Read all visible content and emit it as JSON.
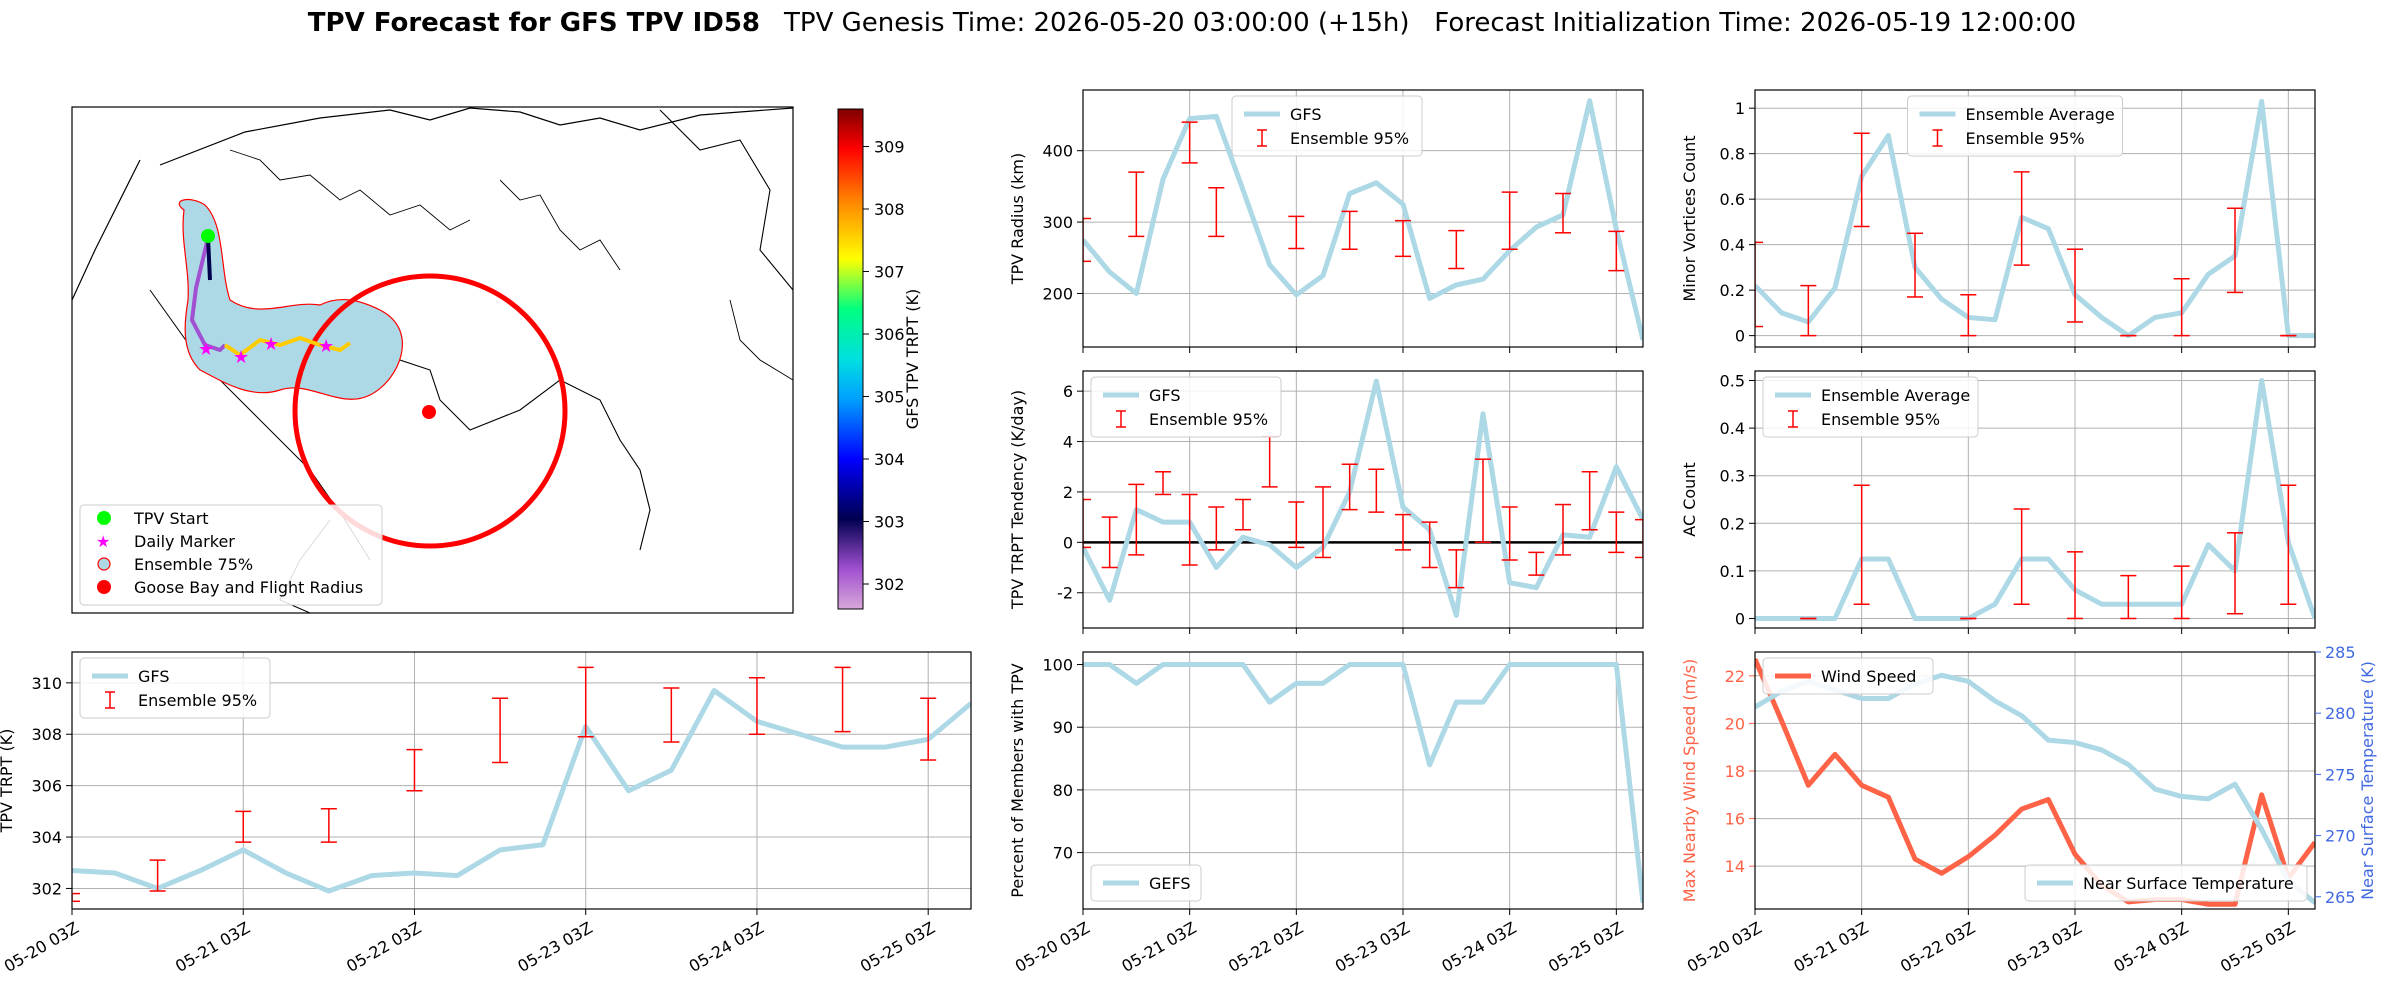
{
  "title": {
    "bold": "TPV Forecast for GFS TPV ID58",
    "rest": "TPV Genesis Time: 2026-05-20 03:00:00 (+15h)   Forecast Initialization Time: 2026-05-19 12:00:00"
  },
  "colors": {
    "gfs_line": "#add8e6",
    "errorbar": "#ff0000",
    "wind": "#ff6347",
    "temp_axis": "#4169e1",
    "axes": "#000000",
    "grid": "#b0b0b0"
  },
  "x_ticks": [
    "05-20 03Z",
    "05-21 03Z",
    "05-22 03Z",
    "05-23 03Z",
    "05-24 03Z",
    "05-25 03Z"
  ],
  "map": {
    "legend": [
      "TPV Start",
      "Daily Marker",
      "Ensemble 75%",
      "Goose Bay and Flight Radius"
    ],
    "colorbar_label": "GFS TPV TRPT (K)",
    "colorbar_ticks": [
      302,
      303,
      304,
      305,
      306,
      307,
      308,
      309
    ],
    "colorbar_range": [
      301.6,
      309.6
    ]
  },
  "chart_data": [
    {
      "id": "trpt",
      "type": "line",
      "ylabel": "TPV TRPT (K)",
      "ylim": [
        301.2,
        311.2
      ],
      "yticks": [
        302,
        304,
        306,
        308,
        310
      ],
      "legend": [
        "GFS",
        "Ensemble 95%"
      ],
      "legend_position": "upper-left",
      "x_hours": [
        0,
        6,
        12,
        18,
        24,
        30,
        36,
        42,
        48,
        54,
        60,
        66,
        72,
        78,
        84,
        90,
        96,
        102,
        108,
        114,
        120,
        126
      ],
      "series": [
        {
          "name": "GFS",
          "values": [
            302.7,
            302.6,
            302.0,
            302.7,
            303.5,
            302.6,
            301.9,
            302.5,
            302.6,
            302.5,
            303.5,
            303.7,
            308.3,
            305.8,
            306.6,
            309.7,
            308.5,
            308.0,
            307.5,
            307.5,
            307.8,
            309.2
          ]
        }
      ],
      "errorbars": [
        {
          "x": 0,
          "lo": 301.5,
          "hi": 301.8
        },
        {
          "x": 12,
          "lo": 301.9,
          "hi": 303.1
        },
        {
          "x": 24,
          "lo": 303.8,
          "hi": 305.0
        },
        {
          "x": 36,
          "lo": 303.8,
          "hi": 305.1
        },
        {
          "x": 48,
          "lo": 305.8,
          "hi": 307.4
        },
        {
          "x": 60,
          "lo": 306.9,
          "hi": 309.4
        },
        {
          "x": 72,
          "lo": 307.9,
          "hi": 310.6
        },
        {
          "x": 84,
          "lo": 307.7,
          "hi": 309.8
        },
        {
          "x": 96,
          "lo": 308.0,
          "hi": 310.2
        },
        {
          "x": 108,
          "lo": 308.1,
          "hi": 310.6
        },
        {
          "x": 120,
          "lo": 307.0,
          "hi": 309.4
        }
      ]
    },
    {
      "id": "radius",
      "type": "line",
      "ylabel": "TPV Radius (km)",
      "ylim": [
        125,
        485
      ],
      "yticks": [
        200,
        300,
        400
      ],
      "legend": [
        "GFS",
        "Ensemble 95%"
      ],
      "legend_position": "upper-center",
      "x_hours": [
        0,
        6,
        12,
        18,
        24,
        30,
        36,
        42,
        48,
        54,
        60,
        66,
        72,
        78,
        84,
        90,
        96,
        102,
        108,
        114,
        120,
        126
      ],
      "series": [
        {
          "name": "GFS",
          "values": [
            275,
            230,
            200,
            360,
            445,
            448,
            345,
            240,
            198,
            225,
            340,
            355,
            325,
            193,
            212,
            220,
            260,
            293,
            310,
            470,
            290,
            135
          ]
        }
      ],
      "errorbars": [
        {
          "x": 0,
          "lo": 245,
          "hi": 305
        },
        {
          "x": 12,
          "lo": 280,
          "hi": 370
        },
        {
          "x": 24,
          "lo": 383,
          "hi": 440
        },
        {
          "x": 30,
          "lo": 280,
          "hi": 348
        },
        {
          "x": 48,
          "lo": 263,
          "hi": 308
        },
        {
          "x": 60,
          "lo": 262,
          "hi": 315
        },
        {
          "x": 72,
          "lo": 252,
          "hi": 302
        },
        {
          "x": 84,
          "lo": 235,
          "hi": 288
        },
        {
          "x": 96,
          "lo": 262,
          "hi": 342
        },
        {
          "x": 108,
          "lo": 285,
          "hi": 340
        },
        {
          "x": 120,
          "lo": 232,
          "hi": 287
        }
      ]
    },
    {
      "id": "minor",
      "type": "line",
      "ylabel": "Minor Vortices Count",
      "ylim": [
        -0.05,
        1.08
      ],
      "yticks": [
        0.0,
        0.2,
        0.4,
        0.6,
        0.8,
        1.0
      ],
      "legend": [
        "Ensemble Average",
        "Ensemble 95%"
      ],
      "legend_position": "upper-center",
      "x_hours": [
        0,
        6,
        12,
        18,
        24,
        30,
        36,
        42,
        48,
        54,
        60,
        66,
        72,
        78,
        84,
        90,
        96,
        102,
        108,
        114,
        120,
        126
      ],
      "series": [
        {
          "name": "Ensemble Average",
          "values": [
            0.22,
            0.1,
            0.06,
            0.21,
            0.7,
            0.88,
            0.3,
            0.16,
            0.08,
            0.07,
            0.52,
            0.47,
            0.18,
            0.08,
            0.0,
            0.08,
            0.1,
            0.27,
            0.35,
            1.03,
            0.0,
            0.0
          ]
        }
      ],
      "errorbars": [
        {
          "x": 0,
          "lo": 0.04,
          "hi": 0.41
        },
        {
          "x": 12,
          "lo": 0.0,
          "hi": 0.22
        },
        {
          "x": 24,
          "lo": 0.48,
          "hi": 0.89
        },
        {
          "x": 36,
          "lo": 0.17,
          "hi": 0.45
        },
        {
          "x": 48,
          "lo": 0.0,
          "hi": 0.18
        },
        {
          "x": 60,
          "lo": 0.31,
          "hi": 0.72
        },
        {
          "x": 72,
          "lo": 0.06,
          "hi": 0.38
        },
        {
          "x": 84,
          "lo": 0.0,
          "hi": 0.0
        },
        {
          "x": 96,
          "lo": 0.0,
          "hi": 0.25
        },
        {
          "x": 108,
          "lo": 0.19,
          "hi": 0.56
        },
        {
          "x": 120,
          "lo": 0.0,
          "hi": 0.0
        }
      ]
    },
    {
      "id": "tendency",
      "type": "line",
      "ylabel": "TPV TRPT Tendency (K/day)",
      "ylim": [
        -3.4,
        6.8
      ],
      "yticks": [
        -2,
        0,
        2,
        4,
        6
      ],
      "zero_line": true,
      "legend": [
        "GFS",
        "Ensemble 95%"
      ],
      "legend_position": "upper-left",
      "x_hours": [
        0,
        6,
        12,
        18,
        24,
        30,
        36,
        42,
        48,
        54,
        60,
        66,
        72,
        78,
        84,
        90,
        96,
        102,
        108,
        114,
        120,
        126
      ],
      "series": [
        {
          "name": "GFS",
          "values": [
            -0.2,
            -2.3,
            1.3,
            0.8,
            0.8,
            -1.0,
            0.2,
            -0.1,
            -1.0,
            -0.2,
            2.0,
            6.4,
            1.4,
            0.5,
            -2.9,
            5.1,
            -1.6,
            -1.8,
            0.3,
            0.2,
            3.0,
            0.9
          ]
        }
      ],
      "errorbars": [
        {
          "x": 0,
          "lo": -0.2,
          "hi": 1.7
        },
        {
          "x": 6,
          "lo": -1.0,
          "hi": 1.0
        },
        {
          "x": 12,
          "lo": -0.5,
          "hi": 2.3
        },
        {
          "x": 18,
          "lo": 1.9,
          "hi": 2.8
        },
        {
          "x": 24,
          "lo": -0.9,
          "hi": 1.9
        },
        {
          "x": 30,
          "lo": -0.3,
          "hi": 1.4
        },
        {
          "x": 36,
          "lo": 0.5,
          "hi": 1.7
        },
        {
          "x": 42,
          "lo": 2.2,
          "hi": 4.2
        },
        {
          "x": 48,
          "lo": -0.2,
          "hi": 1.6
        },
        {
          "x": 54,
          "lo": -0.6,
          "hi": 2.2
        },
        {
          "x": 60,
          "lo": 1.3,
          "hi": 3.1
        },
        {
          "x": 66,
          "lo": 1.2,
          "hi": 2.9
        },
        {
          "x": 72,
          "lo": -0.3,
          "hi": 1.1
        },
        {
          "x": 78,
          "lo": -1.0,
          "hi": 0.8
        },
        {
          "x": 84,
          "lo": -1.8,
          "hi": -0.3
        },
        {
          "x": 90,
          "lo": 0.0,
          "hi": 3.3
        },
        {
          "x": 96,
          "lo": -0.7,
          "hi": 1.4
        },
        {
          "x": 102,
          "lo": -1.3,
          "hi": -0.4
        },
        {
          "x": 108,
          "lo": -0.5,
          "hi": 1.5
        },
        {
          "x": 114,
          "lo": 0.5,
          "hi": 2.8
        },
        {
          "x": 120,
          "lo": -0.4,
          "hi": 1.2
        },
        {
          "x": 126,
          "lo": -0.6,
          "hi": 0.9
        }
      ]
    },
    {
      "id": "ac",
      "type": "line",
      "ylabel": "AC Count",
      "ylim": [
        -0.02,
        0.52
      ],
      "yticks": [
        0.0,
        0.1,
        0.2,
        0.3,
        0.4,
        0.5
      ],
      "legend": [
        "Ensemble Average",
        "Ensemble 95%"
      ],
      "legend_position": "upper-left",
      "x_hours": [
        0,
        6,
        12,
        18,
        24,
        30,
        36,
        42,
        48,
        54,
        60,
        66,
        72,
        78,
        84,
        90,
        96,
        102,
        108,
        114,
        120,
        126
      ],
      "series": [
        {
          "name": "Ensemble Average",
          "values": [
            0.0,
            0.0,
            0.0,
            0.0,
            0.125,
            0.125,
            0.0,
            0.0,
            0.0,
            0.03,
            0.125,
            0.125,
            0.06,
            0.03,
            0.03,
            0.03,
            0.03,
            0.155,
            0.1,
            0.5,
            0.16,
            0.0
          ]
        }
      ],
      "errorbars": [
        {
          "x": 12,
          "lo": 0.0,
          "hi": 0.0
        },
        {
          "x": 24,
          "lo": 0.03,
          "hi": 0.28
        },
        {
          "x": 48,
          "lo": 0.0,
          "hi": 0.0
        },
        {
          "x": 60,
          "lo": 0.03,
          "hi": 0.23
        },
        {
          "x": 72,
          "lo": 0.0,
          "hi": 0.14
        },
        {
          "x": 84,
          "lo": 0.0,
          "hi": 0.09
        },
        {
          "x": 96,
          "lo": 0.0,
          "hi": 0.11
        },
        {
          "x": 108,
          "lo": 0.01,
          "hi": 0.18
        },
        {
          "x": 120,
          "lo": 0.03,
          "hi": 0.28
        }
      ]
    },
    {
      "id": "percent",
      "type": "line",
      "ylabel": "Percent of Members with TPV",
      "ylim": [
        61,
        102
      ],
      "yticks": [
        70,
        80,
        90,
        100
      ],
      "legend": [
        "GEFS"
      ],
      "legend_position": "lower-left",
      "x_hours": [
        0,
        6,
        12,
        18,
        24,
        30,
        36,
        42,
        48,
        54,
        60,
        66,
        72,
        78,
        84,
        90,
        96,
        102,
        108,
        114,
        120,
        126
      ],
      "series": [
        {
          "name": "GEFS",
          "values": [
            100,
            100,
            97,
            100,
            100,
            100,
            100,
            94,
            97,
            97,
            100,
            100,
            100,
            84,
            94,
            94,
            100,
            100,
            100,
            100,
            100,
            62
          ]
        }
      ]
    },
    {
      "id": "wind_temp",
      "type": "line",
      "ylabel": "Max Nearby Wind Speed (m/s)",
      "ylabel_right": "Near Surface Temperature (K)",
      "ylim": [
        12.2,
        23.0
      ],
      "yticks": [
        14,
        16,
        18,
        20,
        22
      ],
      "ylim_right": [
        264.0,
        285.0
      ],
      "yticks_right": [
        265,
        270,
        275,
        280,
        285
      ],
      "legend": [
        "Wind Speed"
      ],
      "legend_right": [
        "Near Surface Temperature"
      ],
      "x_hours": [
        0,
        6,
        12,
        18,
        24,
        30,
        36,
        42,
        48,
        54,
        60,
        66,
        72,
        78,
        84,
        90,
        96,
        102,
        108,
        114,
        120,
        126
      ],
      "series": [
        {
          "name": "Wind Speed",
          "axis": "left",
          "values": [
            22.7,
            20.1,
            17.4,
            18.7,
            17.4,
            16.9,
            14.3,
            13.7,
            14.4,
            15.3,
            16.4,
            16.8,
            14.5,
            13.2,
            12.5,
            12.6,
            12.6,
            12.4,
            12.4,
            17.0,
            13.5,
            15.0
          ]
        },
        {
          "name": "Near Surface Temperature",
          "axis": "right",
          "values": [
            280.5,
            281.8,
            282.6,
            281.9,
            281.2,
            281.2,
            282.4,
            283.1,
            282.6,
            281.0,
            279.8,
            277.8,
            277.6,
            277.0,
            275.8,
            273.8,
            273.2,
            273.0,
            274.2,
            270.5,
            266.3,
            264.5
          ]
        }
      ]
    }
  ]
}
